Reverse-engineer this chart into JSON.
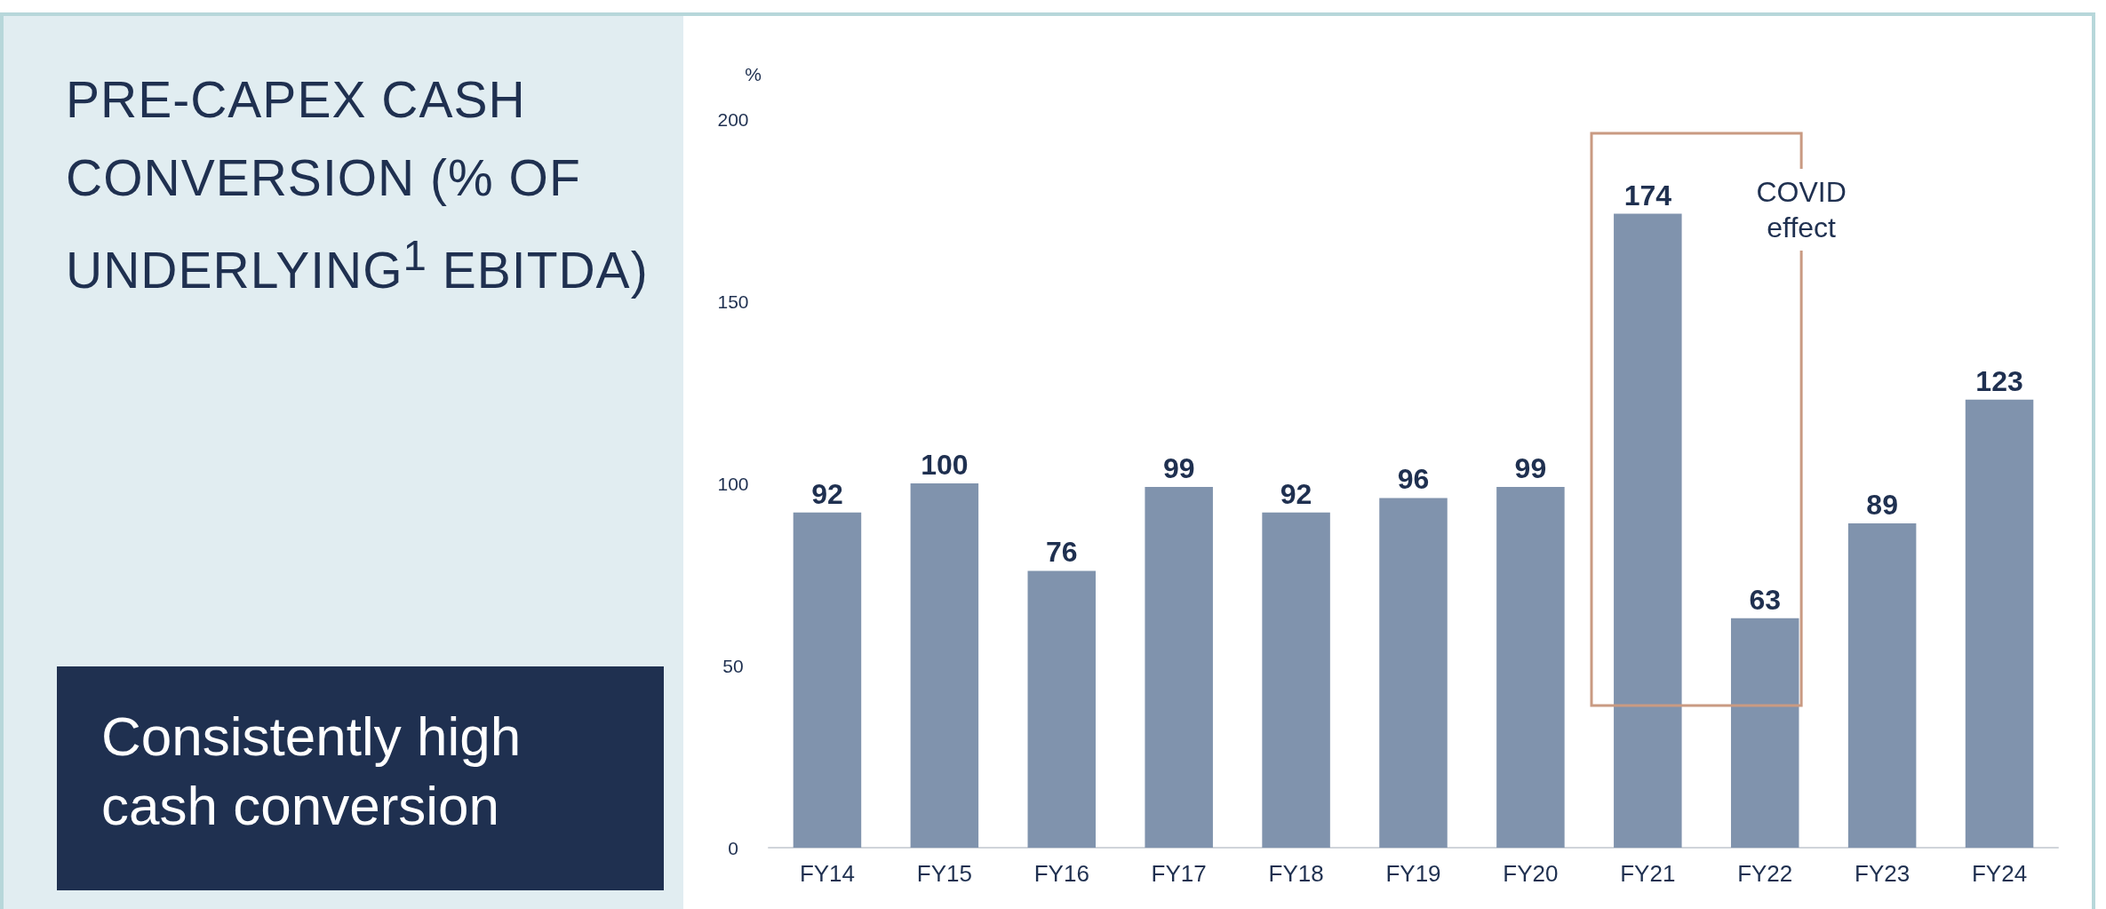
{
  "chart_data": {
    "type": "bar",
    "title": "PRE-CAPEX CASH CONVERSION (% OF UNDERLYING$^{1}$ EBITDA)",
    "ylabel": "%",
    "categories": [
      "FY14",
      "FY15",
      "FY16",
      "FY17",
      "FY18",
      "FY19",
      "FY20",
      "FY21",
      "FY22",
      "FY23",
      "FY24"
    ],
    "values": [
      92,
      100,
      76,
      99,
      92,
      96,
      99,
      174,
      63,
      89,
      123
    ],
    "color": "#8093ad",
    "ylim": [
      0,
      200
    ],
    "yticks": [
      0,
      50,
      100,
      150,
      200
    ],
    "grid": false,
    "data_labels": true,
    "annotations": [
      "COVID effect",
      "Consistently high cash conversion"
    ]
  }
}
